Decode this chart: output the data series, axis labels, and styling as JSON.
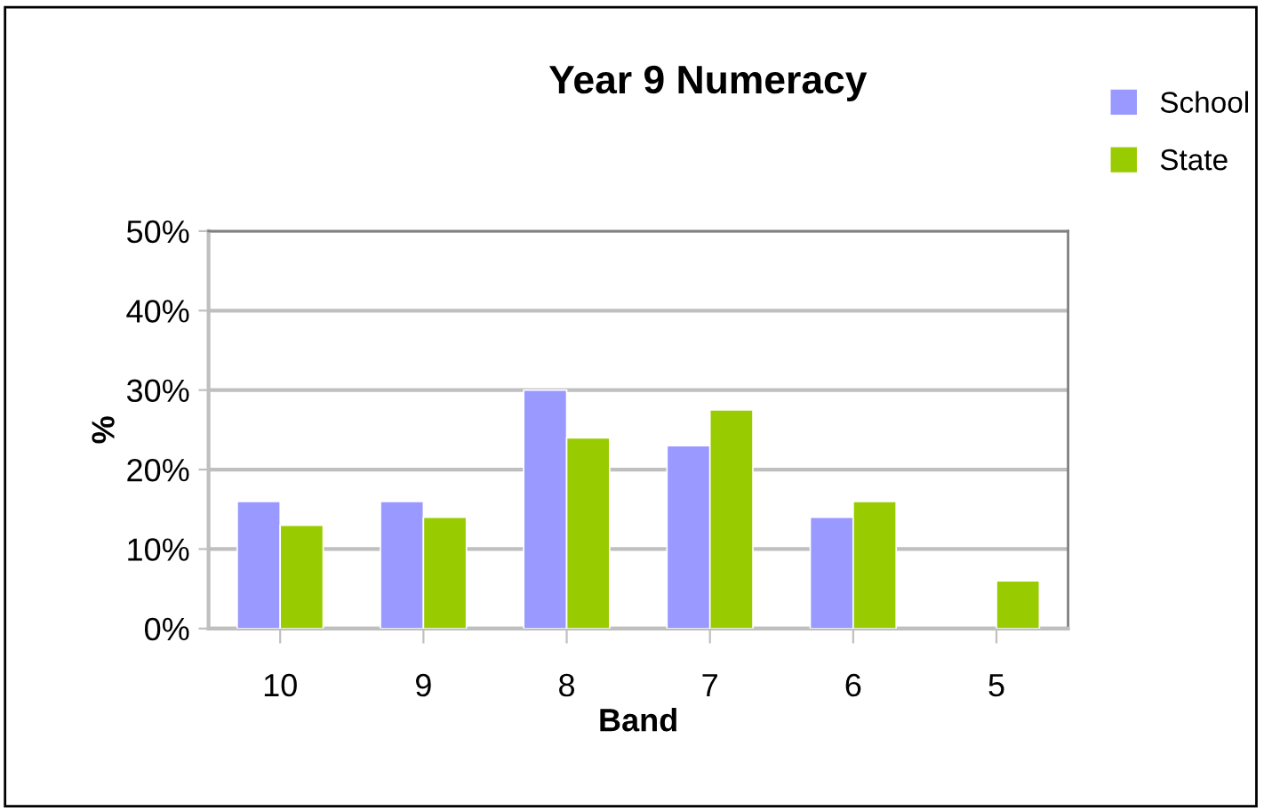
{
  "chart_data": {
    "type": "bar",
    "title": "Year 9 Numeracy",
    "xlabel": "Band",
    "ylabel": "%",
    "categories": [
      "10",
      "9",
      "8",
      "7",
      "6",
      "5"
    ],
    "series": [
      {
        "name": "School",
        "color": "#9999ff",
        "values": [
          16,
          16,
          30,
          23,
          14,
          null
        ]
      },
      {
        "name": "State",
        "color": "#99cc00",
        "values": [
          13,
          14,
          24,
          27.5,
          16,
          6
        ]
      }
    ],
    "ylim": [
      0,
      50
    ],
    "yticks": [
      {
        "value": 0,
        "label": "0%"
      },
      {
        "value": 10,
        "label": "10%"
      },
      {
        "value": 20,
        "label": "20%"
      },
      {
        "value": 30,
        "label": "30%"
      },
      {
        "value": 40,
        "label": "40%"
      },
      {
        "value": 50,
        "label": "50%"
      }
    ],
    "grid": "y",
    "legend": "top right"
  }
}
